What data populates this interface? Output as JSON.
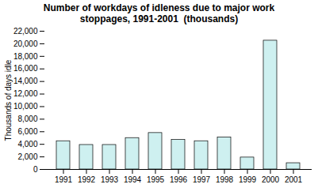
{
  "chart_data": {
    "type": "bar",
    "title": "Number of workdays of idleness due to major work\nstoppages, 1991-2001  (thousands)",
    "ylabel": "Thousands of days idle",
    "categories": [
      "1991",
      "1992",
      "1993",
      "1994",
      "1995",
      "1996",
      "1997",
      "1998",
      "1999",
      "2000",
      "2001"
    ],
    "values": [
      4500,
      3900,
      3900,
      5000,
      5800,
      4700,
      4500,
      5100,
      1900,
      20500,
      1000
    ],
    "color": "#cef0f0",
    "ylim": [
      0,
      22000
    ],
    "yticks": [
      0,
      {
        "value": 2000,
        "label": "2,000"
      },
      {
        "value": 4000,
        "label": "4,000"
      },
      {
        "value": 6000,
        "label": "6,000"
      },
      {
        "value": 8000,
        "label": "8,000"
      },
      {
        "value": 10000,
        "label": "10,000"
      },
      {
        "value": 12000,
        "label": "12,000"
      },
      {
        "value": 14000,
        "label": "14,000"
      },
      {
        "value": 16000,
        "label": "16,000"
      },
      {
        "value": 18000,
        "label": "18,000"
      },
      {
        "value": 20000,
        "label": "20,000"
      },
      {
        "value": 22000,
        "label": "22,000"
      }
    ],
    "grid": false
  }
}
